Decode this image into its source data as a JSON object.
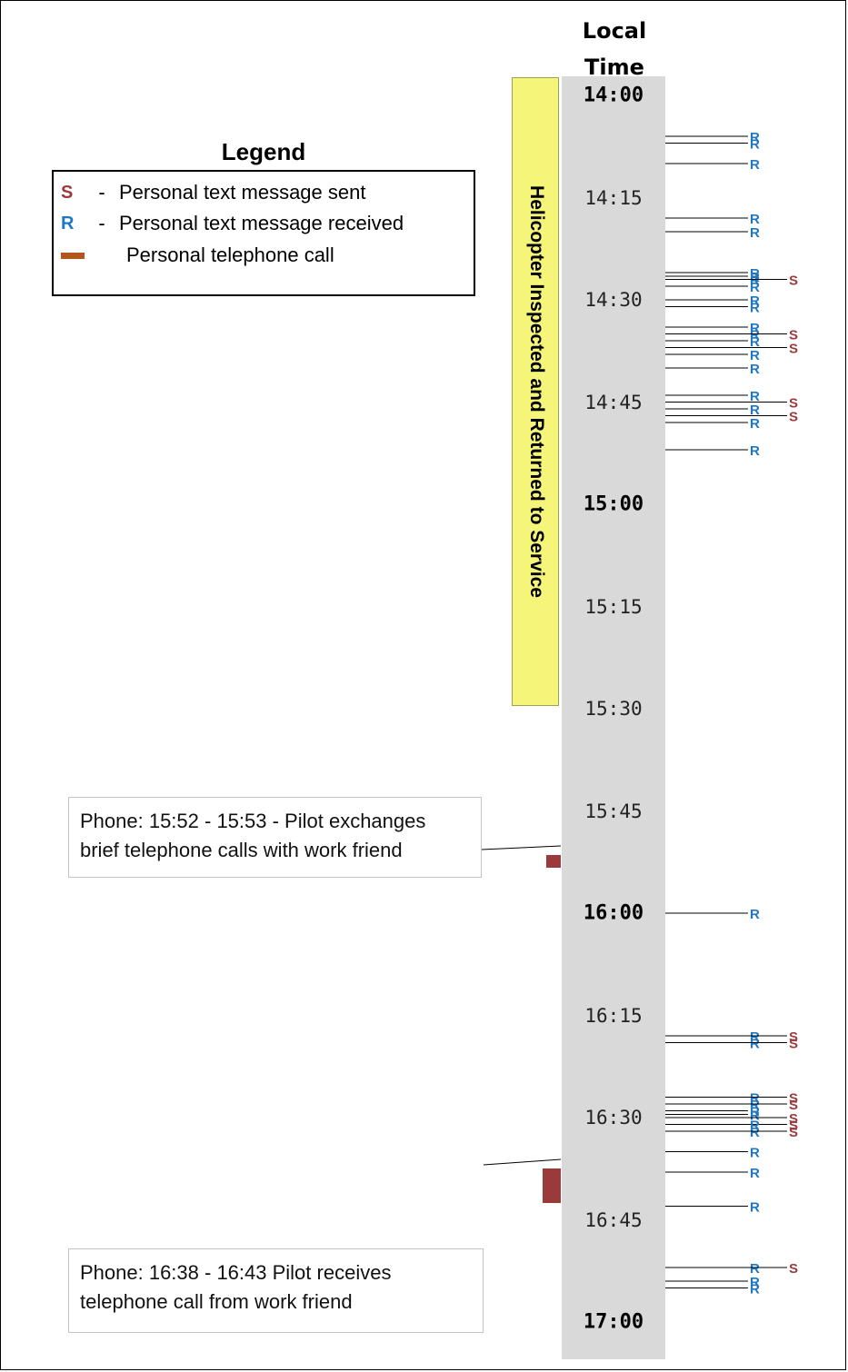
{
  "column_title": "Local Time",
  "time_labels": [
    {
      "time": "14:00",
      "major": true
    },
    {
      "time": "14:15",
      "major": false
    },
    {
      "time": "14:30",
      "major": false
    },
    {
      "time": "14:45",
      "major": false
    },
    {
      "time": "15:00",
      "major": true
    },
    {
      "time": "15:15",
      "major": false
    },
    {
      "time": "15:30",
      "major": false
    },
    {
      "time": "15:45",
      "major": false
    },
    {
      "time": "16:00",
      "major": true
    },
    {
      "time": "16:15",
      "major": false
    },
    {
      "time": "16:30",
      "major": false
    },
    {
      "time": "16:45",
      "major": false
    },
    {
      "time": "17:00",
      "major": true
    }
  ],
  "maintenance_period": {
    "label": "Helicopter Inspected and Returned to Service",
    "color": "#f5f57a"
  },
  "legend": {
    "title": "Legend",
    "items": [
      {
        "symbol": "S",
        "dash": "-",
        "text": "Personal text message sent",
        "color": "#9b3a3a"
      },
      {
        "symbol": "R",
        "dash": "-",
        "text": "Personal text message received",
        "color": "#1f78c1"
      },
      {
        "symbol": "",
        "dash": "",
        "text": "Personal telephone call",
        "color": "#b5541b"
      }
    ]
  },
  "phone_calls": [
    {
      "start": "15:52",
      "end": "15:53",
      "note_line1": "Phone:  15:52 - 15:53 -  Pilot exchanges",
      "note_line2": "brief telephone calls with work friend"
    },
    {
      "start": "16:38",
      "end": "16:43",
      "note_line1": "Phone:  16:38 - 16:43  Pilot receives",
      "note_line2": "telephone call from work friend"
    }
  ],
  "messages": [
    {
      "time": "14:06",
      "type": "R"
    },
    {
      "time": "14:07",
      "type": "R"
    },
    {
      "time": "14:10",
      "type": "R"
    },
    {
      "time": "14:18",
      "type": "R"
    },
    {
      "time": "14:20",
      "type": "R"
    },
    {
      "time": "14:26",
      "type": "R"
    },
    {
      "time": "14:26",
      "type": "R"
    },
    {
      "time": "14:27",
      "type": "R"
    },
    {
      "time": "14:27",
      "type": "S"
    },
    {
      "time": "14:28",
      "type": "R"
    },
    {
      "time": "14:30",
      "type": "R"
    },
    {
      "time": "14:31",
      "type": "R"
    },
    {
      "time": "14:34",
      "type": "R"
    },
    {
      "time": "14:35",
      "type": "R"
    },
    {
      "time": "14:35",
      "type": "S"
    },
    {
      "time": "14:36",
      "type": "R"
    },
    {
      "time": "14:37",
      "type": "S"
    },
    {
      "time": "14:38",
      "type": "R"
    },
    {
      "time": "14:40",
      "type": "R"
    },
    {
      "time": "14:44",
      "type": "R"
    },
    {
      "time": "14:45",
      "type": "S"
    },
    {
      "time": "14:46",
      "type": "R"
    },
    {
      "time": "14:47",
      "type": "S"
    },
    {
      "time": "14:48",
      "type": "R"
    },
    {
      "time": "14:52",
      "type": "R"
    },
    {
      "time": "16:00",
      "type": "R"
    },
    {
      "time": "16:18",
      "type": "R"
    },
    {
      "time": "16:18",
      "type": "S"
    },
    {
      "time": "16:19",
      "type": "R"
    },
    {
      "time": "16:19",
      "type": "S"
    },
    {
      "time": "16:27",
      "type": "R"
    },
    {
      "time": "16:27",
      "type": "S"
    },
    {
      "time": "16:28",
      "type": "R"
    },
    {
      "time": "16:28",
      "type": "S"
    },
    {
      "time": "16:29",
      "type": "R"
    },
    {
      "time": "16:29",
      "type": "R"
    },
    {
      "time": "16:30",
      "type": "S"
    },
    {
      "time": "16:31",
      "type": "S"
    },
    {
      "time": "16:31",
      "type": "R"
    },
    {
      "time": "16:32",
      "type": "R"
    },
    {
      "time": "16:32",
      "type": "S"
    },
    {
      "time": "16:35",
      "type": "R"
    },
    {
      "time": "16:38",
      "type": "R"
    },
    {
      "time": "16:43",
      "type": "R"
    },
    {
      "time": "16:52",
      "type": "R"
    },
    {
      "time": "16:52",
      "type": "S"
    },
    {
      "time": "16:54",
      "type": "R"
    },
    {
      "time": "16:55",
      "type": "R"
    }
  ]
}
